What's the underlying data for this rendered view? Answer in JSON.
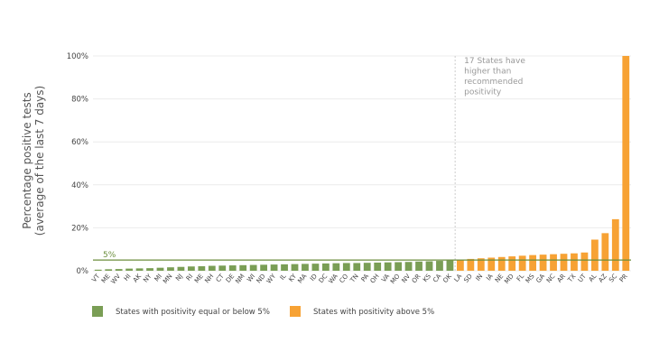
{
  "chart_data": {
    "type": "bar",
    "ylabel_line1": "Percentage positive tests",
    "ylabel_line2": "(average of the last 7 days)",
    "ylim": [
      0,
      100
    ],
    "yticks": [
      0,
      20,
      40,
      60,
      80,
      100
    ],
    "ytick_labels": [
      "0%",
      "20%",
      "40%",
      "60%",
      "80%",
      "100%"
    ],
    "grid": true,
    "reference_line": {
      "value": 5,
      "label": "5%"
    },
    "annotation": {
      "lines": [
        "17 States have",
        "higher than",
        "recommended",
        "positivity"
      ]
    },
    "threshold_divider_after": "OK",
    "colors": {
      "below": "#7a9e55",
      "above": "#f7a234",
      "reference": "#6b8e3c",
      "divider": "#cccccc"
    },
    "categories": [
      "VT",
      "ME",
      "WV",
      "HI",
      "AK",
      "NY",
      "MI",
      "MN",
      "NJ",
      "RI",
      "ME",
      "NH",
      "CT",
      "DE",
      "NM",
      "WI",
      "ND",
      "WY",
      "IL",
      "KY",
      "MA",
      "ID",
      "DC",
      "WA",
      "CO",
      "TN",
      "PA",
      "OH",
      "VA",
      "MO",
      "NV",
      "OR",
      "KS",
      "CA",
      "OK",
      "LA",
      "SD",
      "IN",
      "IA",
      "NE",
      "MD",
      "FL",
      "MS",
      "GA",
      "NC",
      "AR",
      "TX",
      "UT",
      "AL",
      "AZ",
      "SC",
      "PR"
    ],
    "values": [
      0.5,
      0.7,
      0.8,
      1.0,
      1.1,
      1.2,
      1.4,
      1.6,
      1.8,
      2.0,
      2.1,
      2.3,
      2.4,
      2.5,
      2.6,
      2.7,
      2.8,
      2.9,
      3.0,
      3.1,
      3.2,
      3.3,
      3.4,
      3.5,
      3.6,
      3.6,
      3.7,
      3.8,
      3.9,
      4.0,
      4.1,
      4.3,
      4.4,
      4.6,
      4.8,
      5.2,
      5.5,
      5.8,
      6.1,
      6.4,
      6.7,
      7.0,
      7.3,
      7.5,
      7.7,
      7.9,
      8.1,
      8.5,
      14.5,
      17.5,
      24.0,
      100.0
    ],
    "series": [
      {
        "name": "States with positivity equal or below 5%",
        "color": "#7a9e55"
      },
      {
        "name": "States with positivity above 5%",
        "color": "#f7a234"
      }
    ],
    "legend_position": "bottom-left"
  }
}
